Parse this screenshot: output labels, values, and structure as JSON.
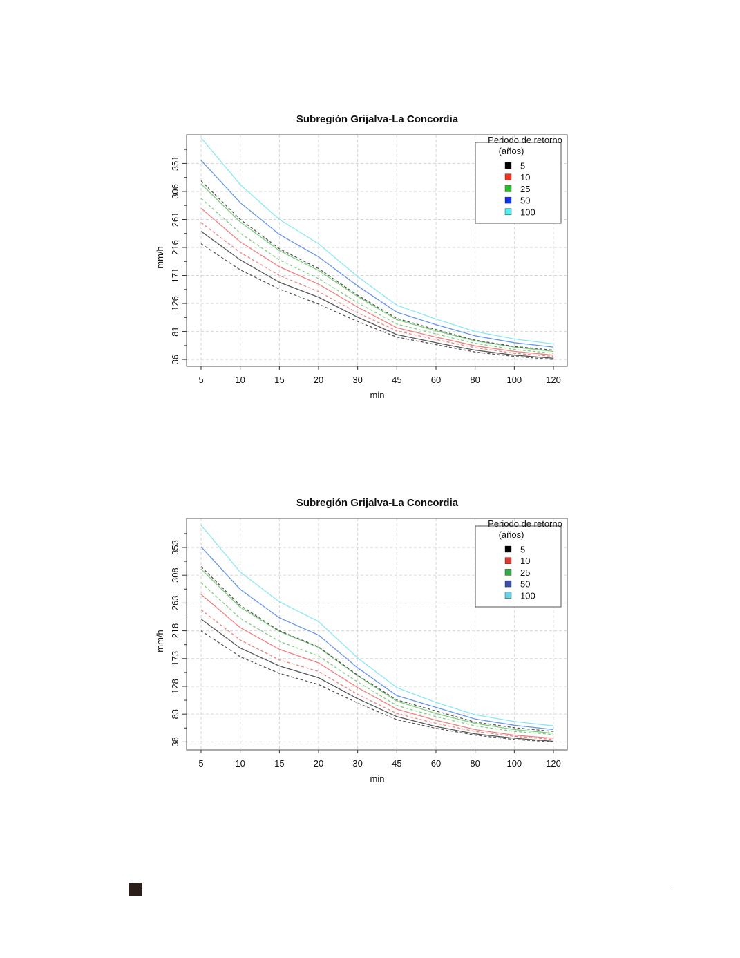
{
  "chart_data": [
    {
      "type": "line",
      "title": "Subregión Grijalva-La Concordia",
      "xlabel": "min",
      "ylabel": "mm/h",
      "categories": [
        "5",
        "10",
        "15",
        "20",
        "30",
        "45",
        "60",
        "80",
        "100",
        "120"
      ],
      "yticks": [
        36,
        81,
        126,
        171,
        216,
        261,
        306,
        351
      ],
      "ylim": [
        25,
        397
      ],
      "grid": true,
      "legend": {
        "title_line1": "Periodo de retorno",
        "title_line2": "(años)",
        "position": "top-right",
        "items": [
          "5",
          "10",
          "25",
          "50",
          "100"
        ]
      },
      "series": [
        {
          "name": "5",
          "color": "#555555",
          "style": "solid",
          "values": [
            242,
            196,
            160,
            136,
            104,
            76,
            63,
            51,
            43,
            38
          ]
        },
        {
          "name": "5",
          "color": "#555555",
          "style": "dashed",
          "values": [
            222,
            180,
            149,
            125,
            97,
            72,
            60,
            48,
            41,
            36
          ]
        },
        {
          "name": "10",
          "color": "#f08080",
          "style": "solid",
          "values": [
            279,
            225,
            185,
            157,
            120,
            87,
            72,
            58,
            49,
            43
          ]
        },
        {
          "name": "10",
          "color": "#f08080",
          "style": "dashed",
          "values": [
            256,
            208,
            171,
            145,
            111,
            82,
            68,
            55,
            46,
            41
          ]
        },
        {
          "name": "25",
          "color": "#7ccd7c",
          "style": "solid",
          "values": [
            318,
            257,
            211,
            179,
            137,
            100,
            82,
            66,
            56,
            49
          ]
        },
        {
          "name": "25",
          "color": "#7ccd7c",
          "style": "dashed",
          "values": [
            295,
            239,
            196,
            166,
            127,
            93,
            77,
            62,
            52,
            46
          ]
        },
        {
          "name": "50",
          "color": "#6495ed",
          "style": "solid",
          "values": [
            356,
            288,
            237,
            201,
            154,
            112,
            92,
            74,
            63,
            56
          ]
        },
        {
          "name": "50",
          "color": "#555555",
          "style": "dashed",
          "values": [
            323,
            261,
            214,
            182,
            139,
            102,
            84,
            67,
            57,
            51
          ]
        },
        {
          "name": "100",
          "color": "#87e8f5",
          "style": "solid",
          "values": [
            392,
            317,
            261,
            222,
            169,
            123,
            101,
            81,
            69,
            61
          ]
        }
      ]
    },
    {
      "type": "line",
      "title": "Subregión Grijalva-La Concordia",
      "xlabel": "min",
      "ylabel": "mm/h",
      "categories": [
        "5",
        "10",
        "15",
        "20",
        "30",
        "45",
        "60",
        "80",
        "100",
        "120"
      ],
      "yticks": [
        38,
        83,
        128,
        173,
        218,
        263,
        308,
        353
      ],
      "ylim": [
        25,
        400
      ],
      "grid": true,
      "legend": {
        "title_line1": "Periodo de retorno",
        "title_line2": "(años)",
        "position": "top-right",
        "items": [
          "5",
          "10",
          "25",
          "50",
          "100"
        ]
      },
      "series": [
        {
          "name": "5",
          "color": "#555555",
          "style": "solid",
          "values": [
            237,
            190,
            161,
            142,
            108,
            79,
            63,
            51,
            44,
            39
          ]
        },
        {
          "name": "5",
          "color": "#555555",
          "style": "dashed",
          "values": [
            218,
            176,
            149,
            131,
            101,
            74,
            60,
            49,
            42,
            38
          ]
        },
        {
          "name": "10",
          "color": "#f08080",
          "style": "solid",
          "values": [
            277,
            223,
            188,
            166,
            126,
            91,
            73,
            58,
            49,
            44
          ]
        },
        {
          "name": "10",
          "color": "#f08080",
          "style": "dashed",
          "values": [
            252,
            203,
            171,
            152,
            115,
            84,
            68,
            55,
            47,
            42
          ]
        },
        {
          "name": "25",
          "color": "#7ccd7c",
          "style": "solid",
          "values": [
            318,
            256,
            217,
            191,
            145,
            104,
            84,
            68,
            58,
            52
          ]
        },
        {
          "name": "25",
          "color": "#7ccd7c",
          "style": "dashed",
          "values": [
            296,
            238,
            201,
            177,
            135,
            97,
            79,
            64,
            55,
            50
          ]
        },
        {
          "name": "50",
          "color": "#6495ed",
          "style": "solid",
          "values": [
            354,
            285,
            239,
            211,
            158,
            113,
            94,
            75,
            65,
            58
          ]
        },
        {
          "name": "50",
          "color": "#555555",
          "style": "dashed",
          "values": [
            322,
            259,
            218,
            192,
            146,
            106,
            88,
            70,
            61,
            55
          ]
        },
        {
          "name": "100",
          "color": "#87e8f5",
          "style": "solid",
          "values": [
            389,
            313,
            265,
            233,
            174,
            126,
            102,
            82,
            71,
            64
          ]
        }
      ]
    }
  ],
  "legend_colors": [
    [
      "#000000",
      "#f0321e",
      "#28c028",
      "#1432e6",
      "#50f0f0"
    ],
    [
      "#000000",
      "#dc3c32",
      "#32aa46",
      "#3c50aa",
      "#64d2e6"
    ]
  ]
}
